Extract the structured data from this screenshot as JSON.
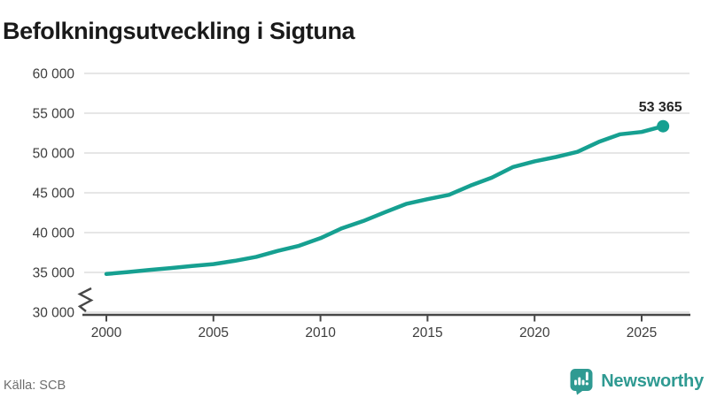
{
  "title": "Befolkningsutveckling i Sigtuna",
  "source": "Källa: SCB",
  "brand": {
    "name": "Newsworthy",
    "color": "#2F9A92"
  },
  "colors": {
    "line": "#16A091",
    "grid": "#E3E3E3",
    "axis": "#474747",
    "tick_text": "#3D3D3D",
    "title_text": "#1A1A1A",
    "label_text": "#262626",
    "muted_text": "#6E6E6E"
  },
  "chart_data": {
    "type": "line",
    "title": "Befolkningsutveckling i Sigtuna",
    "xlabel": "",
    "ylabel": "",
    "ylim": [
      30000,
      60000
    ],
    "grid": "horizontal",
    "legend": "none",
    "axis_break_at_y_start": true,
    "x": [
      2000,
      2001,
      2002,
      2003,
      2004,
      2005,
      2006,
      2007,
      2008,
      2009,
      2010,
      2011,
      2012,
      2013,
      2014,
      2015,
      2016,
      2017,
      2018,
      2019,
      2020,
      2021,
      2022,
      2023,
      2024,
      2025,
      2026
    ],
    "values": [
      34800,
      35050,
      35300,
      35550,
      35800,
      36050,
      36450,
      36950,
      37700,
      38350,
      39300,
      40550,
      41450,
      42550,
      43600,
      44200,
      44750,
      45900,
      46900,
      48250,
      48950,
      49500,
      50150,
      51400,
      52350,
      52650,
      53365
    ],
    "end_value": 53365,
    "end_label": "53 365",
    "y_ticks": [
      {
        "label": "60 000",
        "value": 60000
      },
      {
        "label": "55 000",
        "value": 55000
      },
      {
        "label": "50 000",
        "value": 50000
      },
      {
        "label": "45 000",
        "value": 45000
      },
      {
        "label": "40 000",
        "value": 40000
      },
      {
        "label": "35 000",
        "value": 35000
      },
      {
        "label": "30 000",
        "value": 30000
      }
    ],
    "x_ticks": [
      2000,
      2005,
      2010,
      2015,
      2020,
      2025
    ]
  }
}
